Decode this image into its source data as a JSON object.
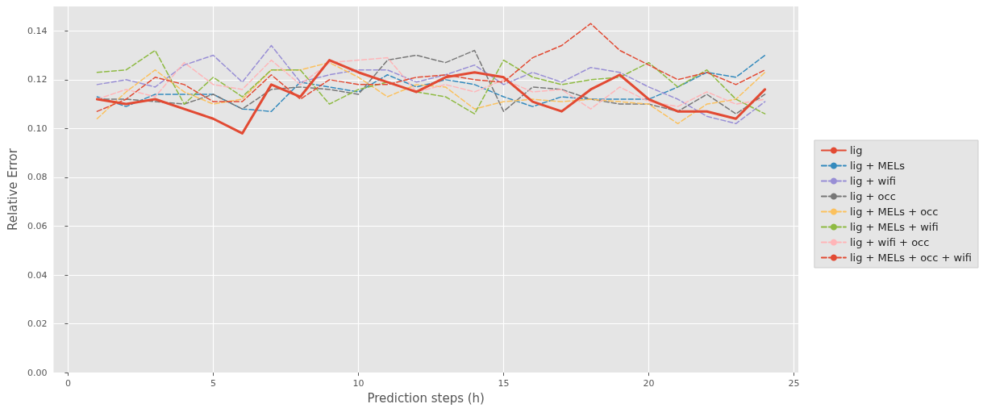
{
  "chart_data": {
    "type": "line",
    "xlabel": "Prediction steps (h)",
    "ylabel": "Relative Error",
    "x": [
      1,
      2,
      3,
      4,
      5,
      6,
      7,
      8,
      9,
      10,
      11,
      12,
      13,
      14,
      15,
      16,
      17,
      18,
      19,
      20,
      21,
      22,
      23,
      24
    ],
    "xlim": [
      -0.5,
      25.15
    ],
    "xticks": [
      0,
      5,
      10,
      15,
      20,
      25
    ],
    "ylim": [
      0,
      0.15
    ],
    "yticks": [
      {
        "value": 0,
        "label": "0.00"
      },
      {
        "value": 0.02,
        "label": "0.02"
      },
      {
        "value": 0.04,
        "label": "0.04"
      },
      {
        "value": 0.06,
        "label": "0.06"
      },
      {
        "value": 0.08,
        "label": "0.08"
      },
      {
        "value": 0.1,
        "label": "0.10"
      },
      {
        "value": 0.12,
        "label": "0.12"
      },
      {
        "value": 0.14,
        "label": "0.14"
      }
    ],
    "grid": true,
    "legend": "right",
    "marker": "none",
    "series": [
      {
        "name": "lig",
        "color": "#e24a33",
        "line_style": "solid",
        "values": [
          0.112,
          0.11,
          0.112,
          0.108,
          0.104,
          0.098,
          0.118,
          0.113,
          0.128,
          0.123,
          0.119,
          0.115,
          0.121,
          0.123,
          0.121,
          0.111,
          0.107,
          0.116,
          0.122,
          0.112,
          0.107,
          0.107,
          0.104,
          0.116
        ]
      },
      {
        "name": "lig + MELs",
        "color": "#348abd",
        "line_style": "dashed",
        "values": [
          0.113,
          0.109,
          0.114,
          0.114,
          0.114,
          0.108,
          0.107,
          0.119,
          0.117,
          0.115,
          0.122,
          0.117,
          0.12,
          0.118,
          0.113,
          0.109,
          0.113,
          0.112,
          0.112,
          0.112,
          0.117,
          0.123,
          0.121,
          0.13
        ]
      },
      {
        "name": "lig + wifi",
        "color": "#988ed5",
        "line_style": "dashed",
        "values": [
          0.118,
          0.12,
          0.117,
          0.126,
          0.13,
          0.119,
          0.134,
          0.119,
          0.122,
          0.124,
          0.124,
          0.119,
          0.122,
          0.126,
          0.118,
          0.123,
          0.119,
          0.125,
          0.123,
          0.117,
          0.112,
          0.105,
          0.102,
          0.111
        ]
      },
      {
        "name": "lig + occ",
        "color": "#777777",
        "line_style": "dashed",
        "values": [
          0.112,
          0.112,
          0.111,
          0.11,
          0.114,
          0.108,
          0.116,
          0.117,
          0.116,
          0.114,
          0.128,
          0.13,
          0.127,
          0.132,
          0.107,
          0.117,
          0.116,
          0.112,
          0.11,
          0.11,
          0.107,
          0.114,
          0.106,
          0.114
        ]
      },
      {
        "name": "lig + MELs + occ",
        "color": "#fbc15e",
        "line_style": "dashed",
        "values": [
          0.104,
          0.115,
          0.124,
          0.115,
          0.11,
          0.112,
          0.124,
          0.124,
          0.127,
          0.121,
          0.113,
          0.118,
          0.117,
          0.108,
          0.111,
          0.112,
          0.111,
          0.112,
          0.111,
          0.11,
          0.102,
          0.11,
          0.112,
          0.123
        ]
      },
      {
        "name": "lig + MELs + wifi",
        "color": "#8eba42",
        "line_style": "dashed",
        "values": [
          0.123,
          0.124,
          0.132,
          0.11,
          0.121,
          0.113,
          0.124,
          0.124,
          0.11,
          0.116,
          0.119,
          0.115,
          0.113,
          0.106,
          0.128,
          0.121,
          0.118,
          0.12,
          0.121,
          0.127,
          0.117,
          0.124,
          0.112,
          0.106
        ]
      },
      {
        "name": "lig + wifi + occ",
        "color": "#ffb5b8",
        "line_style": "dashed",
        "values": [
          0.112,
          0.116,
          0.113,
          0.127,
          0.118,
          0.116,
          0.128,
          0.118,
          0.127,
          0.128,
          0.129,
          0.115,
          0.118,
          0.115,
          0.12,
          0.115,
          0.116,
          0.108,
          0.117,
          0.111,
          0.109,
          0.115,
          0.11,
          0.112
        ]
      },
      {
        "name": "lig + MELs + occ + wifi",
        "color": "#e24a33",
        "line_style": "dashed",
        "values": [
          0.107,
          0.112,
          0.121,
          0.118,
          0.111,
          0.111,
          0.122,
          0.112,
          0.12,
          0.118,
          0.118,
          0.121,
          0.122,
          0.12,
          0.119,
          0.129,
          0.134,
          0.143,
          0.132,
          0.126,
          0.12,
          0.123,
          0.118,
          0.124
        ]
      }
    ]
  }
}
